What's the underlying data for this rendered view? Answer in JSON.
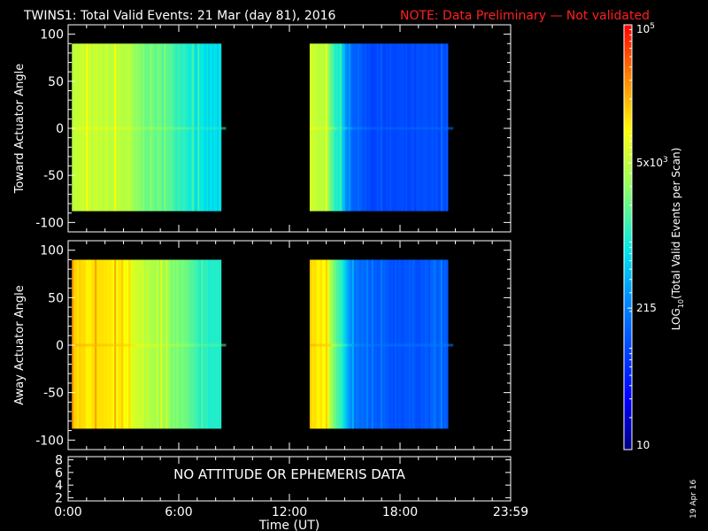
{
  "header": {
    "title": "TWINS1: Total Valid Events: 21 Mar (day  81), 2016",
    "note": "NOTE: Data Preliminary — Not validated"
  },
  "colors": {
    "note": "#ff2020",
    "axes": "#ffffff",
    "background": "#000000"
  },
  "footer": {
    "date_stamp": "19 Apr 16"
  },
  "chart_data": [
    {
      "type": "heatmap",
      "panel": "toward",
      "ylabel": "Toward Actuator Angle",
      "ylim": [
        -110,
        110
      ],
      "yticks": [
        100,
        50,
        0,
        -50,
        -100
      ],
      "angle_range": [
        -88,
        90
      ],
      "xlim": [
        0,
        24
      ],
      "scale": "log",
      "segments": [
        {
          "start_hour": 0.2,
          "end_hour": 8.3,
          "profile": [
            {
              "hour": 0.2,
              "log": 3.72
            },
            {
              "hour": 2.0,
              "log": 3.7
            },
            {
              "hour": 3.2,
              "log": 3.66
            },
            {
              "hour": 3.6,
              "log": 3.45
            },
            {
              "hour": 4.5,
              "log": 3.35
            },
            {
              "hour": 5.5,
              "log": 3.2
            },
            {
              "hour": 6.2,
              "log": 3.1
            },
            {
              "hour": 7.0,
              "log": 2.85
            },
            {
              "hour": 8.3,
              "log": 2.8
            }
          ]
        },
        {
          "start_hour": 13.1,
          "end_hour": 20.6,
          "profile": [
            {
              "hour": 13.1,
              "log": 3.75
            },
            {
              "hour": 14.0,
              "log": 3.62
            },
            {
              "hour": 14.3,
              "log": 3.2
            },
            {
              "hour": 14.8,
              "log": 2.75
            },
            {
              "hour": 15.3,
              "log": 2.2
            },
            {
              "hour": 16.5,
              "log": 1.95
            },
            {
              "hour": 18.5,
              "log": 1.95
            },
            {
              "hour": 20.6,
              "log": 2.0
            }
          ]
        }
      ]
    },
    {
      "type": "heatmap",
      "panel": "away",
      "ylabel": "Away Actuator Angle",
      "ylim": [
        -110,
        110
      ],
      "yticks": [
        100,
        50,
        0,
        -50,
        -100
      ],
      "angle_range": [
        -88,
        90
      ],
      "xlim": [
        0,
        24
      ],
      "scale": "log",
      "segments": [
        {
          "start_hour": 0.2,
          "end_hour": 8.3,
          "profile": [
            {
              "hour": 0.2,
              "log": 4.15
            },
            {
              "hour": 2.0,
              "log": 4.05
            },
            {
              "hour": 3.2,
              "log": 4.0
            },
            {
              "hour": 3.6,
              "log": 3.75
            },
            {
              "hour": 4.5,
              "log": 3.65
            },
            {
              "hour": 5.5,
              "log": 3.45
            },
            {
              "hour": 6.2,
              "log": 3.35
            },
            {
              "hour": 7.0,
              "log": 3.05
            },
            {
              "hour": 8.3,
              "log": 3.0
            }
          ]
        },
        {
          "start_hour": 13.1,
          "end_hour": 20.6,
          "profile": [
            {
              "hour": 13.1,
              "log": 4.15
            },
            {
              "hour": 14.0,
              "log": 4.0
            },
            {
              "hour": 14.3,
              "log": 3.5
            },
            {
              "hour": 14.8,
              "log": 3.0
            },
            {
              "hour": 15.3,
              "log": 2.3
            },
            {
              "hour": 16.5,
              "log": 2.05
            },
            {
              "hour": 18.5,
              "log": 2.05
            },
            {
              "hour": 20.6,
              "log": 2.1
            }
          ]
        }
      ]
    },
    {
      "type": "line",
      "panel": "attitude",
      "message": "NO ATTITUDE OR EPHEMERIS DATA",
      "ylim": [
        1.5,
        8.5
      ],
      "yticks": [
        "8",
        "6",
        "4",
        "2"
      ],
      "xlabel": "Time (UT)",
      "xlim": [
        0,
        24
      ],
      "xticks": [
        {
          "hour": 0,
          "label": "0:00"
        },
        {
          "hour": 6,
          "label": "6:00"
        },
        {
          "hour": 12,
          "label": "12:00"
        },
        {
          "hour": 18,
          "label": "18:00"
        },
        {
          "hour": 24,
          "label": "23:59"
        }
      ]
    }
  ],
  "colorbar": {
    "label_main": "LOG",
    "label_sub": "10",
    "label_rest": "(Total Valid Events per Scan)",
    "range_log": [
      1,
      5
    ],
    "ticks": [
      {
        "log": 5,
        "base": "10",
        "exp": "5"
      },
      {
        "log": 3.699,
        "base": "5x10",
        "exp": "3"
      },
      {
        "log": 2.332,
        "base": "215",
        "exp": ""
      },
      {
        "log": 1,
        "base": "10",
        "exp": ""
      }
    ]
  }
}
